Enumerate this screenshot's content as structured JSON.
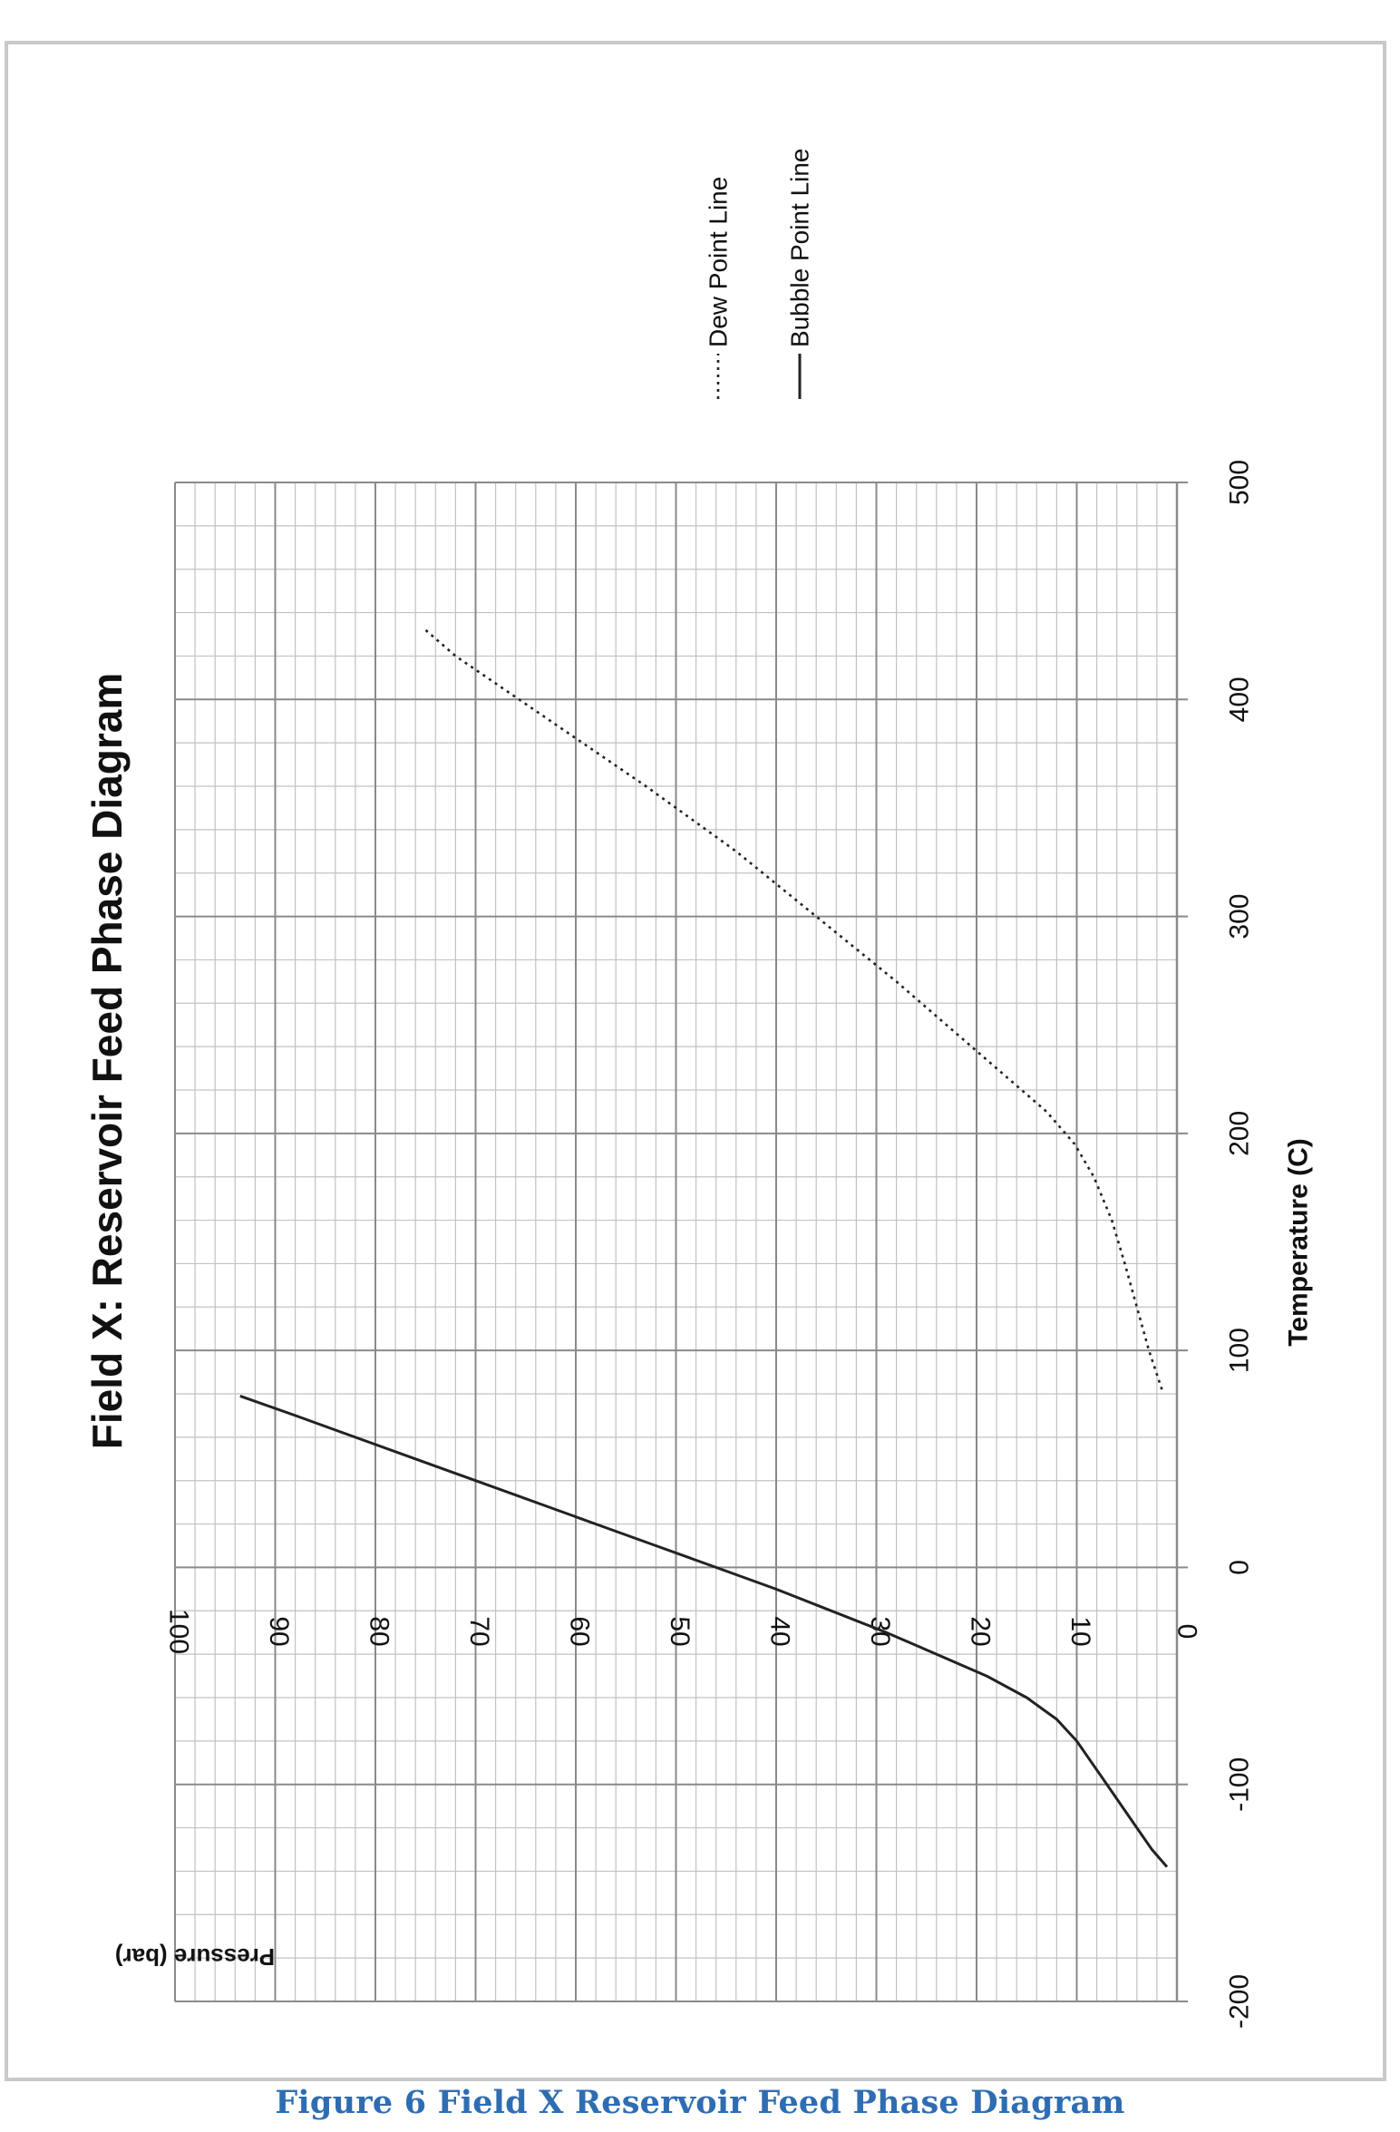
{
  "caption": "Figure 6 Field X Reservoir Feed Phase Diagram",
  "colors": {
    "grid_major": "#8a8a8a",
    "grid_minor": "#c2c2c2",
    "line": "#222222",
    "text": "#111111",
    "frame": "#c9c9c9",
    "caption": "#2f6db3"
  },
  "chart_data": {
    "type": "line",
    "title": "Field X: Reservoir Feed Phase Diagram",
    "xlabel": "Temperature (C)",
    "ylabel": "Pressure (bar)",
    "xlim": [
      -200,
      500
    ],
    "ylim": [
      0,
      100
    ],
    "x_ticks": [
      "-200",
      "-100",
      "0",
      "100",
      "200",
      "300",
      "400",
      "500"
    ],
    "y_ticks": [
      "0",
      "10",
      "20",
      "30",
      "40",
      "50",
      "60",
      "70",
      "80",
      "90",
      "100"
    ],
    "x_tick_values": [
      -200,
      -100,
      0,
      100,
      200,
      300,
      400,
      500
    ],
    "y_tick_values": [
      0,
      10,
      20,
      30,
      40,
      50,
      60,
      70,
      80,
      90,
      100
    ],
    "x_minor_step": 20,
    "y_minor_step": 2,
    "grid": true,
    "orientation": "rotated 90° counter-clockwise",
    "legend_position": "right",
    "series": [
      {
        "name": "Dew Point Line",
        "style": "dotted",
        "x": [
          82,
          100,
          120,
          140,
          160,
          180,
          195,
          210,
          230,
          250,
          270,
          300,
          330,
          360,
          390,
          420,
          432
        ],
        "y": [
          1.5,
          2.8,
          4.0,
          5.2,
          6.5,
          8.3,
          10.2,
          13.0,
          18.0,
          23.0,
          28.0,
          36.0,
          44.0,
          53.0,
          62.5,
          72.0,
          75.0
        ]
      },
      {
        "name": "Bubble Point Line",
        "style": "solid",
        "x": [
          -138,
          -130,
          -120,
          -110,
          -100,
          -90,
          -80,
          -70,
          -60,
          -50,
          -40,
          -30,
          -20,
          -10,
          0,
          10,
          20,
          30,
          40,
          50,
          60,
          70,
          79
        ],
        "y": [
          1.0,
          2.5,
          4.0,
          5.5,
          7.0,
          8.5,
          10.0,
          12.0,
          15.0,
          19.0,
          24.0,
          29.0,
          34.5,
          40.0,
          46.0,
          52.0,
          58.0,
          64.0,
          70.0,
          76.0,
          82.0,
          88.0,
          93.5
        ]
      }
    ]
  }
}
